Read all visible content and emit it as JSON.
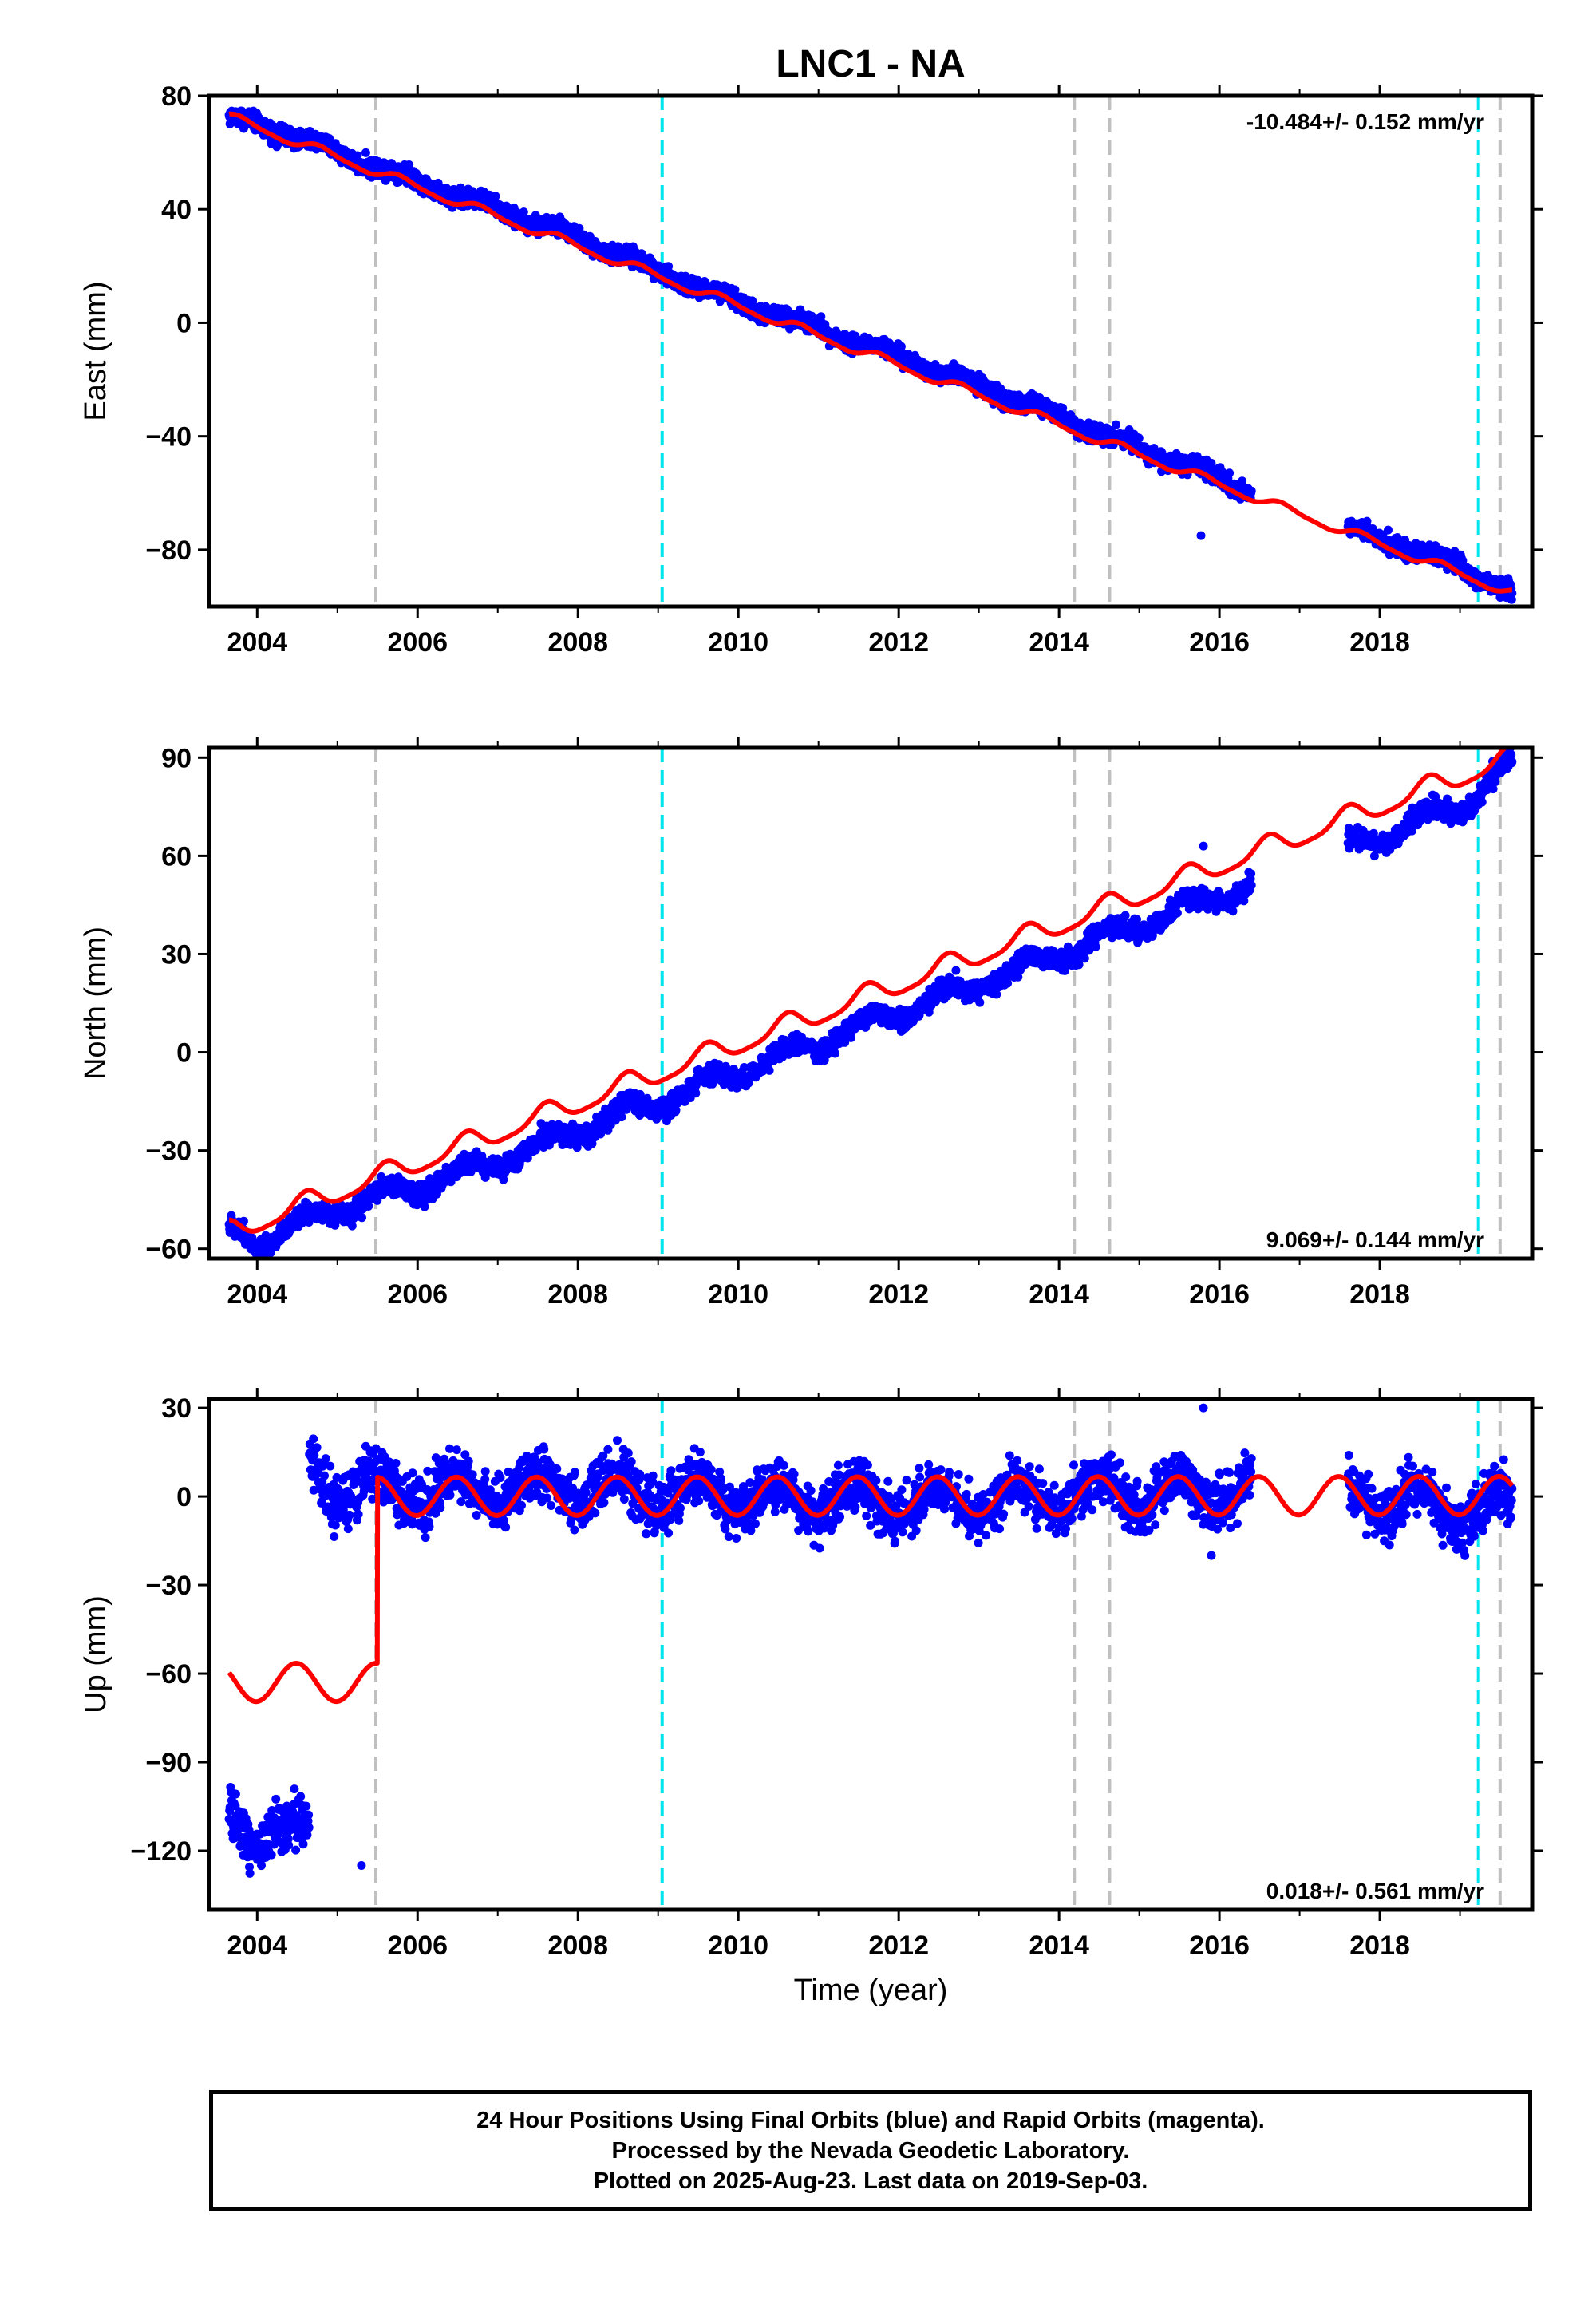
{
  "title": "LNC1 - NA",
  "xlabel": "Time (year)",
  "footer": {
    "line1": "24 Hour Positions Using Final Orbits (blue) and Rapid Orbits (magenta).",
    "line2": "Processed by the Nevada Geodetic Laboratory.",
    "line3": "Plotted on 2025-Aug-23. Last data on 2019-Sep-03."
  },
  "colors": {
    "data": "#0000ff",
    "model": "#ff0000",
    "equipment_change": "#c0c0c0",
    "earthquake": "#00e5ee"
  },
  "chart_data": [
    {
      "type": "scatter",
      "ylabel": "East (mm)",
      "rate_text": "-10.484+/- 0.152 mm/yr",
      "rate_position": "top-right",
      "xlim": [
        2003.4,
        2019.9
      ],
      "ylim": [
        -100,
        80
      ],
      "yticks": [
        -80,
        -40,
        0,
        40,
        80
      ],
      "xticks": [
        2004,
        2006,
        2008,
        2010,
        2012,
        2014,
        2016,
        2018
      ],
      "gaps": [
        [
          2016.4,
          2017.6
        ]
      ],
      "model": {
        "offset": 72.5,
        "epoch": 2003.65,
        "rate": -10.484,
        "annual_amp": 1.5,
        "semi_amp": 0.4,
        "phase": 0.6,
        "jump": null
      },
      "series_points": [
        [
          2003.65,
          72
        ],
        [
          2004.0,
          70
        ],
        [
          2005.0,
          60
        ],
        [
          2006.0,
          50
        ],
        [
          2007.0,
          40
        ],
        [
          2008.0,
          30
        ],
        [
          2009.0,
          18
        ],
        [
          2010.0,
          7
        ],
        [
          2011.0,
          -2
        ],
        [
          2012.0,
          -12
        ],
        [
          2013.0,
          -22
        ],
        [
          2014.0,
          -33
        ],
        [
          2015.0,
          -44
        ],
        [
          2016.0,
          -55
        ],
        [
          2017.0,
          -66
        ],
        [
          2018.0,
          -76
        ],
        [
          2019.0,
          -86
        ],
        [
          2019.65,
          -95
        ]
      ],
      "outliers": [
        [
          2015.77,
          -75
        ]
      ],
      "noise": 1.6
    },
    {
      "type": "scatter",
      "ylabel": "North (mm)",
      "rate_text": "9.069+/- 0.144 mm/yr",
      "rate_position": "bottom-right",
      "xlim": [
        2003.4,
        2019.9
      ],
      "ylim": [
        -63,
        93
      ],
      "yticks": [
        -60,
        -30,
        0,
        30,
        60,
        90
      ],
      "xticks": [
        2004,
        2006,
        2008,
        2010,
        2012,
        2014,
        2016,
        2018
      ],
      "gaps": [
        [
          2016.4,
          2017.6
        ]
      ],
      "model": {
        "offset": -55,
        "epoch": 2003.65,
        "rate": 9.069,
        "annual_amp": 3.2,
        "semi_amp": 0.8,
        "phase": 1.9,
        "jump": null
      },
      "series_points": [
        [
          2003.65,
          -55
        ],
        [
          2004.0,
          -57
        ],
        [
          2005.0,
          -48
        ],
        [
          2006.0,
          -41
        ],
        [
          2007.0,
          -33
        ],
        [
          2008.0,
          -24
        ],
        [
          2009.0,
          -15
        ],
        [
          2010.0,
          -6
        ],
        [
          2011.0,
          3
        ],
        [
          2012.0,
          12
        ],
        [
          2013.0,
          21
        ],
        [
          2014.0,
          30
        ],
        [
          2015.0,
          39
        ],
        [
          2016.0,
          48
        ],
        [
          2017.0,
          57
        ],
        [
          2018.0,
          66
        ],
        [
          2019.0,
          75
        ],
        [
          2019.65,
          88
        ]
      ],
      "outliers": [
        [
          2015.8,
          63
        ]
      ],
      "noise": 1.6
    },
    {
      "type": "scatter",
      "ylabel": "Up (mm)",
      "rate_text": "0.018+/- 0.561 mm/yr",
      "rate_position": "bottom-right",
      "xlim": [
        2003.4,
        2019.9
      ],
      "ylim": [
        -140,
        33
      ],
      "yticks": [
        -120,
        -90,
        -60,
        -30,
        0,
        30
      ],
      "xticks": [
        2004,
        2006,
        2008,
        2010,
        2012,
        2014,
        2016,
        2018
      ],
      "gaps": [
        [
          2016.4,
          2017.6
        ]
      ],
      "model": {
        "offset": 0,
        "epoch": 2003.65,
        "rate": 0.018,
        "annual_amp": 6.5,
        "semi_amp": 0.0,
        "phase": 2.6,
        "jump": {
          "t": 2005.5,
          "before": -63
        }
      },
      "series_points": [
        [
          2003.65,
          -110
        ],
        [
          2004.0,
          -112
        ],
        [
          2004.5,
          -115
        ],
        [
          2004.65,
          12
        ],
        [
          2005.0,
          2
        ],
        [
          2006.0,
          2
        ],
        [
          2008.0,
          3
        ],
        [
          2010.0,
          0
        ],
        [
          2012.0,
          -2
        ],
        [
          2014.0,
          0
        ],
        [
          2016.0,
          2
        ],
        [
          2018.0,
          0
        ],
        [
          2019.0,
          -5
        ],
        [
          2019.65,
          -2
        ]
      ],
      "outliers": [
        [
          2005.3,
          -125
        ],
        [
          2015.8,
          30
        ],
        [
          2015.9,
          -20
        ]
      ],
      "noise": 4.5
    }
  ],
  "vlines": {
    "equipment_change": [
      2005.48,
      2014.19,
      2014.63,
      2019.5
    ],
    "earthquake": [
      2009.05,
      2019.23
    ]
  }
}
